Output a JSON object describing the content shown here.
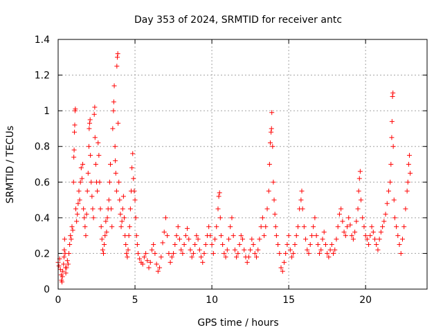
{
  "chart_data": {
    "type": "scatter",
    "title": "Day 353 of 2024, SRMTID for receiver antc",
    "xlabel": "GPS time / hours",
    "ylabel": "SRMTID / TECUs",
    "xlim": [
      0,
      24
    ],
    "ylim": [
      0,
      1.4
    ],
    "xticks": [
      0,
      5,
      10,
      15,
      20
    ],
    "xtick_labels": [
      "0",
      "5",
      "10",
      "15",
      "20"
    ],
    "yticks": [
      0,
      0.2,
      0.4,
      0.6,
      0.8,
      1.0,
      1.2,
      1.4
    ],
    "ytick_labels": [
      "0",
      "0.2",
      "0.4",
      "0.6",
      "0.8",
      "1",
      "1.2",
      "1.4"
    ],
    "grid": true,
    "marker": "+",
    "color": "#ff0000",
    "series": [
      {
        "name": "SRMTID",
        "points": [
          [
            0.0,
            0.15
          ],
          [
            0.05,
            0.13
          ],
          [
            0.1,
            0.17
          ],
          [
            0.15,
            0.11
          ],
          [
            0.2,
            0.08
          ],
          [
            0.22,
            0.05
          ],
          [
            0.25,
            0.04
          ],
          [
            0.28,
            0.07
          ],
          [
            0.3,
            0.1
          ],
          [
            0.35,
            0.14
          ],
          [
            0.38,
            0.18
          ],
          [
            0.4,
            0.22
          ],
          [
            0.42,
            0.28
          ],
          [
            0.45,
            0.2
          ],
          [
            0.48,
            0.12
          ],
          [
            0.5,
            0.09
          ],
          [
            0.55,
            0.12
          ],
          [
            0.6,
            0.16
          ],
          [
            0.65,
            0.14
          ],
          [
            0.7,
            0.2
          ],
          [
            0.75,
            0.25
          ],
          [
            0.8,
            0.3
          ],
          [
            0.85,
            0.28
          ],
          [
            0.9,
            0.35
          ],
          [
            0.95,
            0.33
          ],
          [
            1.0,
            0.6
          ],
          [
            1.02,
            0.74
          ],
          [
            1.04,
            0.78
          ],
          [
            1.06,
            0.88
          ],
          [
            1.08,
            0.92
          ],
          [
            1.1,
            1.0
          ],
          [
            1.12,
            1.01
          ],
          [
            1.15,
            0.45
          ],
          [
            1.2,
            0.38
          ],
          [
            1.25,
            0.42
          ],
          [
            1.3,
            0.48
          ],
          [
            1.35,
            0.55
          ],
          [
            1.4,
            0.5
          ],
          [
            1.45,
            0.6
          ],
          [
            1.5,
            0.68
          ],
          [
            1.55,
            0.62
          ],
          [
            1.6,
            0.7
          ],
          [
            1.65,
            0.45
          ],
          [
            1.7,
            0.4
          ],
          [
            1.75,
            0.35
          ],
          [
            1.8,
            0.3
          ],
          [
            1.85,
            0.42
          ],
          [
            1.9,
            0.55
          ],
          [
            1.95,
            0.65
          ],
          [
            2.0,
            0.8
          ],
          [
            2.02,
            0.9
          ],
          [
            2.05,
            0.93
          ],
          [
            2.08,
            0.95
          ],
          [
            2.1,
            0.75
          ],
          [
            2.15,
            0.6
          ],
          [
            2.2,
            0.52
          ],
          [
            2.25,
            0.45
          ],
          [
            2.3,
            0.4
          ],
          [
            2.35,
            0.98
          ],
          [
            2.38,
            1.02
          ],
          [
            2.4,
            0.85
          ],
          [
            2.45,
            0.7
          ],
          [
            2.5,
            0.6
          ],
          [
            2.55,
            0.55
          ],
          [
            2.6,
            0.82
          ],
          [
            2.65,
            0.75
          ],
          [
            2.7,
            0.6
          ],
          [
            2.75,
            0.45
          ],
          [
            2.8,
            0.35
          ],
          [
            2.85,
            0.28
          ],
          [
            2.9,
            0.22
          ],
          [
            2.95,
            0.2
          ],
          [
            3.0,
            0.25
          ],
          [
            3.05,
            0.3
          ],
          [
            3.1,
            0.38
          ],
          [
            3.15,
            0.32
          ],
          [
            3.2,
            0.4
          ],
          [
            3.25,
            0.45
          ],
          [
            3.3,
            0.5
          ],
          [
            3.35,
            0.6
          ],
          [
            3.4,
            0.7
          ],
          [
            3.45,
            0.45
          ],
          [
            3.5,
            0.35
          ],
          [
            3.55,
            0.9
          ],
          [
            3.6,
            1.0
          ],
          [
            3.62,
            1.05
          ],
          [
            3.65,
            1.14
          ],
          [
            3.7,
            0.8
          ],
          [
            3.72,
            0.72
          ],
          [
            3.75,
            0.65
          ],
          [
            3.8,
            0.55
          ],
          [
            3.82,
            1.25
          ],
          [
            3.85,
            1.3
          ],
          [
            3.88,
            1.32
          ],
          [
            3.9,
            0.93
          ],
          [
            3.95,
            0.6
          ],
          [
            4.0,
            0.5
          ],
          [
            4.05,
            0.42
          ],
          [
            4.1,
            0.35
          ],
          [
            4.15,
            0.38
          ],
          [
            4.2,
            0.45
          ],
          [
            4.25,
            0.52
          ],
          [
            4.3,
            0.4
          ],
          [
            4.35,
            0.3
          ],
          [
            4.4,
            0.25
          ],
          [
            4.45,
            0.2
          ],
          [
            4.5,
            0.18
          ],
          [
            4.55,
            0.22
          ],
          [
            4.6,
            0.3
          ],
          [
            4.65,
            0.35
          ],
          [
            4.7,
            0.45
          ],
          [
            4.75,
            0.55
          ],
          [
            4.8,
            0.68
          ],
          [
            4.85,
            0.76
          ],
          [
            4.9,
            0.62
          ],
          [
            4.95,
            0.55
          ],
          [
            5.0,
            0.5
          ],
          [
            5.05,
            0.4
          ],
          [
            5.1,
            0.3
          ],
          [
            5.15,
            0.25
          ],
          [
            5.2,
            0.2
          ],
          [
            5.3,
            0.17
          ],
          [
            5.4,
            0.15
          ],
          [
            5.5,
            0.14
          ],
          [
            5.6,
            0.18
          ],
          [
            5.7,
            0.2
          ],
          [
            5.8,
            0.16
          ],
          [
            5.9,
            0.12
          ],
          [
            6.0,
            0.15
          ],
          [
            6.1,
            0.22
          ],
          [
            6.2,
            0.25
          ],
          [
            6.3,
            0.2
          ],
          [
            6.4,
            0.14
          ],
          [
            6.5,
            0.1
          ],
          [
            6.6,
            0.12
          ],
          [
            6.7,
            0.18
          ],
          [
            6.8,
            0.26
          ],
          [
            6.9,
            0.32
          ],
          [
            7.0,
            0.4
          ],
          [
            7.1,
            0.3
          ],
          [
            7.2,
            0.2
          ],
          [
            7.3,
            0.15
          ],
          [
            7.4,
            0.18
          ],
          [
            7.5,
            0.2
          ],
          [
            7.6,
            0.25
          ],
          [
            7.7,
            0.3
          ],
          [
            7.8,
            0.35
          ],
          [
            7.9,
            0.28
          ],
          [
            8.0,
            0.22
          ],
          [
            8.1,
            0.2
          ],
          [
            8.2,
            0.25
          ],
          [
            8.3,
            0.3
          ],
          [
            8.4,
            0.34
          ],
          [
            8.5,
            0.28
          ],
          [
            8.6,
            0.22
          ],
          [
            8.7,
            0.18
          ],
          [
            8.8,
            0.2
          ],
          [
            8.9,
            0.25
          ],
          [
            9.0,
            0.3
          ],
          [
            9.1,
            0.28
          ],
          [
            9.2,
            0.22
          ],
          [
            9.3,
            0.18
          ],
          [
            9.4,
            0.15
          ],
          [
            9.5,
            0.2
          ],
          [
            9.6,
            0.25
          ],
          [
            9.7,
            0.3
          ],
          [
            9.8,
            0.35
          ],
          [
            9.9,
            0.3
          ],
          [
            10.0,
            0.25
          ],
          [
            10.1,
            0.2
          ],
          [
            10.2,
            0.28
          ],
          [
            10.3,
            0.35
          ],
          [
            10.4,
            0.45
          ],
          [
            10.45,
            0.52
          ],
          [
            10.5,
            0.54
          ],
          [
            10.55,
            0.4
          ],
          [
            10.6,
            0.3
          ],
          [
            10.7,
            0.25
          ],
          [
            10.8,
            0.2
          ],
          [
            10.9,
            0.18
          ],
          [
            11.0,
            0.22
          ],
          [
            11.1,
            0.28
          ],
          [
            11.2,
            0.35
          ],
          [
            11.3,
            0.4
          ],
          [
            11.4,
            0.3
          ],
          [
            11.5,
            0.22
          ],
          [
            11.6,
            0.18
          ],
          [
            11.7,
            0.2
          ],
          [
            11.8,
            0.25
          ],
          [
            11.9,
            0.3
          ],
          [
            12.0,
            0.28
          ],
          [
            12.1,
            0.22
          ],
          [
            12.2,
            0.18
          ],
          [
            12.3,
            0.15
          ],
          [
            12.4,
            0.18
          ],
          [
            12.5,
            0.22
          ],
          [
            12.6,
            0.28
          ],
          [
            12.7,
            0.25
          ],
          [
            12.8,
            0.2
          ],
          [
            12.9,
            0.18
          ],
          [
            13.0,
            0.22
          ],
          [
            13.1,
            0.28
          ],
          [
            13.2,
            0.35
          ],
          [
            13.3,
            0.4
          ],
          [
            13.4,
            0.3
          ],
          [
            13.5,
            0.35
          ],
          [
            13.6,
            0.45
          ],
          [
            13.7,
            0.55
          ],
          [
            13.75,
            0.7
          ],
          [
            13.8,
            0.82
          ],
          [
            13.85,
            0.88
          ],
          [
            13.88,
            0.9
          ],
          [
            13.9,
            0.99
          ],
          [
            13.95,
            0.8
          ],
          [
            14.0,
            0.6
          ],
          [
            14.05,
            0.5
          ],
          [
            14.1,
            0.42
          ],
          [
            14.15,
            0.35
          ],
          [
            14.2,
            0.3
          ],
          [
            14.3,
            0.25
          ],
          [
            14.4,
            0.2
          ],
          [
            14.5,
            0.12
          ],
          [
            14.6,
            0.1
          ],
          [
            14.7,
            0.15
          ],
          [
            14.8,
            0.2
          ],
          [
            14.9,
            0.25
          ],
          [
            15.0,
            0.3
          ],
          [
            15.1,
            0.22
          ],
          [
            15.2,
            0.18
          ],
          [
            15.3,
            0.2
          ],
          [
            15.4,
            0.25
          ],
          [
            15.5,
            0.3
          ],
          [
            15.6,
            0.35
          ],
          [
            15.7,
            0.45
          ],
          [
            15.8,
            0.5
          ],
          [
            15.85,
            0.55
          ],
          [
            15.9,
            0.45
          ],
          [
            16.0,
            0.35
          ],
          [
            16.1,
            0.28
          ],
          [
            16.2,
            0.22
          ],
          [
            16.3,
            0.2
          ],
          [
            16.4,
            0.25
          ],
          [
            16.5,
            0.3
          ],
          [
            16.6,
            0.35
          ],
          [
            16.7,
            0.4
          ],
          [
            16.8,
            0.3
          ],
          [
            16.9,
            0.25
          ],
          [
            17.0,
            0.2
          ],
          [
            17.1,
            0.22
          ],
          [
            17.2,
            0.28
          ],
          [
            17.3,
            0.32
          ],
          [
            17.4,
            0.25
          ],
          [
            17.5,
            0.2
          ],
          [
            17.6,
            0.18
          ],
          [
            17.7,
            0.22
          ],
          [
            17.8,
            0.25
          ],
          [
            17.9,
            0.2
          ],
          [
            18.0,
            0.22
          ],
          [
            18.1,
            0.28
          ],
          [
            18.2,
            0.35
          ],
          [
            18.3,
            0.42
          ],
          [
            18.4,
            0.45
          ],
          [
            18.5,
            0.38
          ],
          [
            18.6,
            0.32
          ],
          [
            18.7,
            0.3
          ],
          [
            18.8,
            0.35
          ],
          [
            18.9,
            0.4
          ],
          [
            19.0,
            0.36
          ],
          [
            19.1,
            0.3
          ],
          [
            19.2,
            0.28
          ],
          [
            19.3,
            0.32
          ],
          [
            19.4,
            0.38
          ],
          [
            19.5,
            0.45
          ],
          [
            19.55,
            0.55
          ],
          [
            19.6,
            0.62
          ],
          [
            19.65,
            0.66
          ],
          [
            19.7,
            0.5
          ],
          [
            19.8,
            0.4
          ],
          [
            19.9,
            0.35
          ],
          [
            20.0,
            0.3
          ],
          [
            20.1,
            0.28
          ],
          [
            20.2,
            0.25
          ],
          [
            20.3,
            0.3
          ],
          [
            20.4,
            0.35
          ],
          [
            20.5,
            0.32
          ],
          [
            20.6,
            0.28
          ],
          [
            20.7,
            0.25
          ],
          [
            20.8,
            0.22
          ],
          [
            20.9,
            0.28
          ],
          [
            21.0,
            0.32
          ],
          [
            21.1,
            0.35
          ],
          [
            21.2,
            0.38
          ],
          [
            21.3,
            0.42
          ],
          [
            21.4,
            0.48
          ],
          [
            21.5,
            0.55
          ],
          [
            21.6,
            0.6
          ],
          [
            21.65,
            0.7
          ],
          [
            21.7,
            0.85
          ],
          [
            21.72,
            0.94
          ],
          [
            21.75,
            1.08
          ],
          [
            21.78,
            1.1
          ],
          [
            21.8,
            0.8
          ],
          [
            21.85,
            0.5
          ],
          [
            21.9,
            0.4
          ],
          [
            22.0,
            0.35
          ],
          [
            22.1,
            0.3
          ],
          [
            22.2,
            0.25
          ],
          [
            22.3,
            0.2
          ],
          [
            22.4,
            0.28
          ],
          [
            22.5,
            0.35
          ],
          [
            22.6,
            0.45
          ],
          [
            22.7,
            0.55
          ],
          [
            22.75,
            0.6
          ],
          [
            22.8,
            0.7
          ],
          [
            22.85,
            0.75
          ],
          [
            22.9,
            0.65
          ]
        ]
      }
    ]
  }
}
